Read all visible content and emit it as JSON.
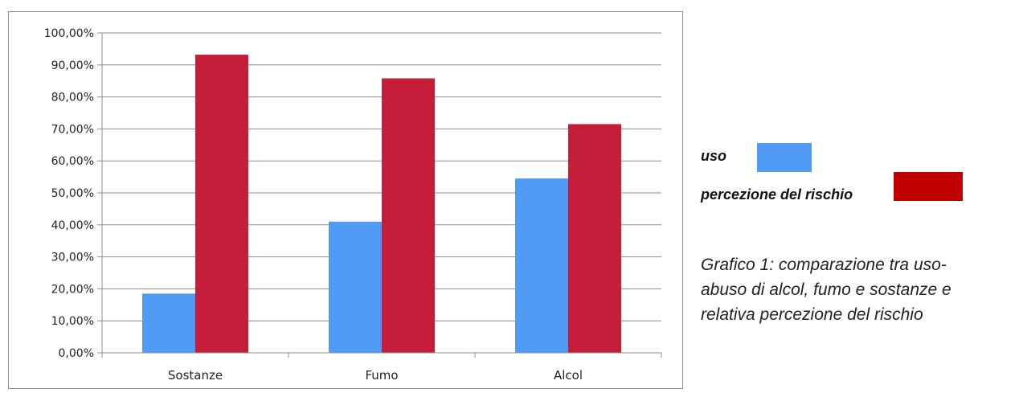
{
  "chart_data": {
    "type": "bar",
    "categories": [
      "Sostanze",
      "Fumo",
      "Alcol"
    ],
    "series": [
      {
        "name": "uso",
        "values": [
          18.5,
          41.0,
          54.5
        ],
        "color": "#4f9bf5"
      },
      {
        "name": "percezione del rischio",
        "values": [
          93.2,
          85.8,
          71.5
        ],
        "color": "#c41e3a"
      }
    ],
    "ylim": [
      0,
      100
    ],
    "yticks": [
      0,
      10,
      20,
      30,
      40,
      50,
      60,
      70,
      80,
      90,
      100
    ],
    "ytick_labels": [
      "0,00%",
      "10,00%",
      "20,00%",
      "30,00%",
      "40,00%",
      "50,00%",
      "60,00%",
      "70,00%",
      "80,00%",
      "90,00%",
      "100,00%"
    ],
    "grid": true,
    "legend_placement": "right"
  },
  "legend": {
    "items": [
      {
        "label": "uso",
        "color": "#4f9bf5"
      },
      {
        "label": "percezione del rischio",
        "color": "#c00000"
      }
    ]
  },
  "caption": {
    "line1": "Grafico 1: comparazione tra uso-",
    "line2": "abuso di alcol, fumo e sostanze e",
    "line3": "relativa percezione del rischio"
  }
}
